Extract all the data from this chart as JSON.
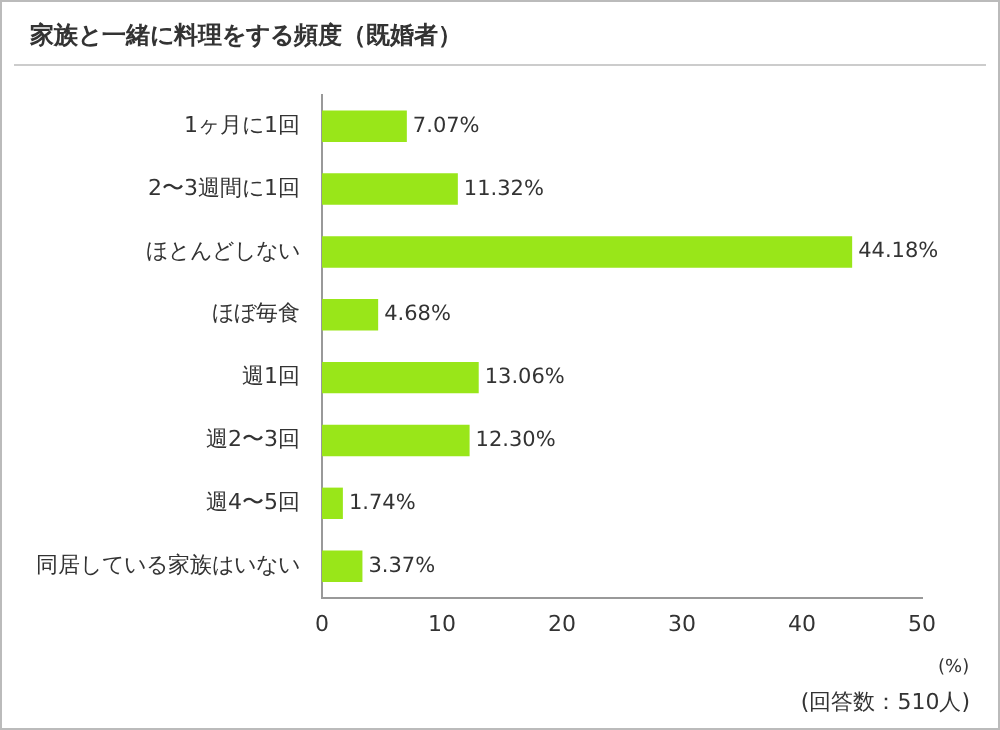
{
  "chart_data": {
    "type": "bar",
    "orientation": "horizontal",
    "title": "家族と一緒に料理をする頻度（既婚者）",
    "categories": [
      "1ヶ月に1回",
      "2〜3週間に1回",
      "ほとんどしない",
      "ほぼ毎食",
      "週1回",
      "週2〜3回",
      "週4〜5回",
      "同居している家族はいない"
    ],
    "values": [
      7.07,
      11.32,
      44.18,
      4.68,
      13.06,
      12.3,
      1.74,
      3.37
    ],
    "value_labels": [
      "7.07%",
      "11.32%",
      "44.18%",
      "4.68%",
      "13.06%",
      "12.30%",
      "1.74%",
      "3.37%"
    ],
    "color": "#99e619",
    "xlim": [
      0,
      50
    ],
    "xticks": [
      0,
      10,
      20,
      30,
      40,
      50
    ],
    "xlabel": "(%)",
    "grid": false,
    "legend": false,
    "annotations": [
      "(回答数：510人)"
    ]
  }
}
